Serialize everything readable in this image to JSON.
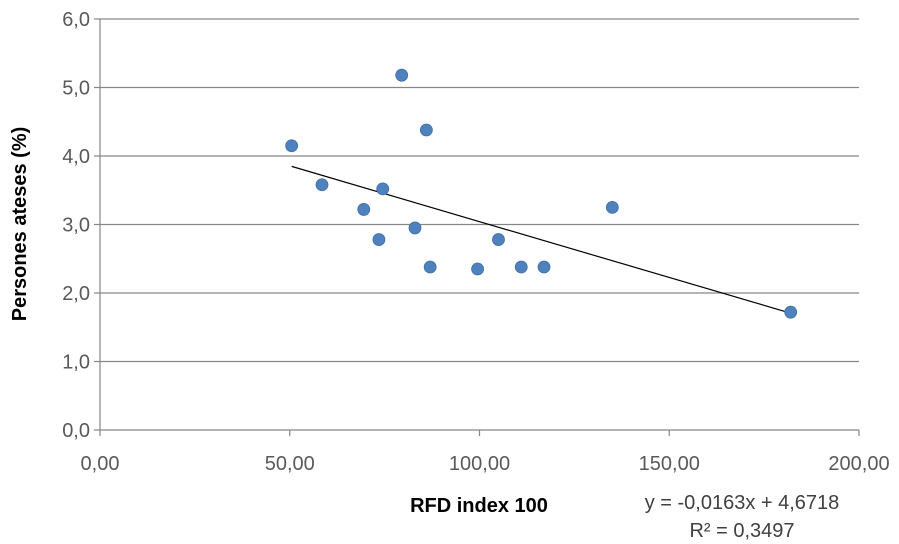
{
  "chart_data": {
    "type": "scatter",
    "xlabel": "RFD index 100",
    "ylabel": "Persones ateses (%)",
    "xlim": [
      0,
      200
    ],
    "ylim": [
      0,
      6
    ],
    "x_ticks": [
      0,
      50,
      100,
      150,
      200
    ],
    "y_ticks": [
      0,
      1,
      2,
      3,
      4,
      5,
      6
    ],
    "x_tick_labels": [
      "0,00",
      "50,00",
      "100,00",
      "150,00",
      "200,00"
    ],
    "y_tick_labels": [
      "0,0",
      "1,0",
      "2,0",
      "3,0",
      "4,0",
      "5,0",
      "6,0"
    ],
    "grid": "horizontal",
    "points": [
      {
        "x": 50.5,
        "y": 4.15
      },
      {
        "x": 58.5,
        "y": 3.58
      },
      {
        "x": 69.5,
        "y": 3.22
      },
      {
        "x": 73.5,
        "y": 2.78
      },
      {
        "x": 74.5,
        "y": 3.52
      },
      {
        "x": 79.5,
        "y": 5.18
      },
      {
        "x": 83.0,
        "y": 2.95
      },
      {
        "x": 86.0,
        "y": 4.38
      },
      {
        "x": 87.0,
        "y": 2.38
      },
      {
        "x": 99.5,
        "y": 2.35
      },
      {
        "x": 105.0,
        "y": 2.78
      },
      {
        "x": 111.0,
        "y": 2.38
      },
      {
        "x": 117.0,
        "y": 2.38
      },
      {
        "x": 135.0,
        "y": 3.25
      },
      {
        "x": 182.0,
        "y": 1.72
      }
    ],
    "trendline": {
      "slope": -0.0163,
      "intercept": 4.6718,
      "x_range": [
        50.5,
        182.0
      ],
      "equation_label": "y = -0,0163x + 4,6718",
      "r2_label": "R² = 0,3497"
    },
    "colors": {
      "marker": "#4f81bd",
      "trendline": "#000000",
      "grid": "#868686",
      "tick_text": "#595959"
    }
  }
}
